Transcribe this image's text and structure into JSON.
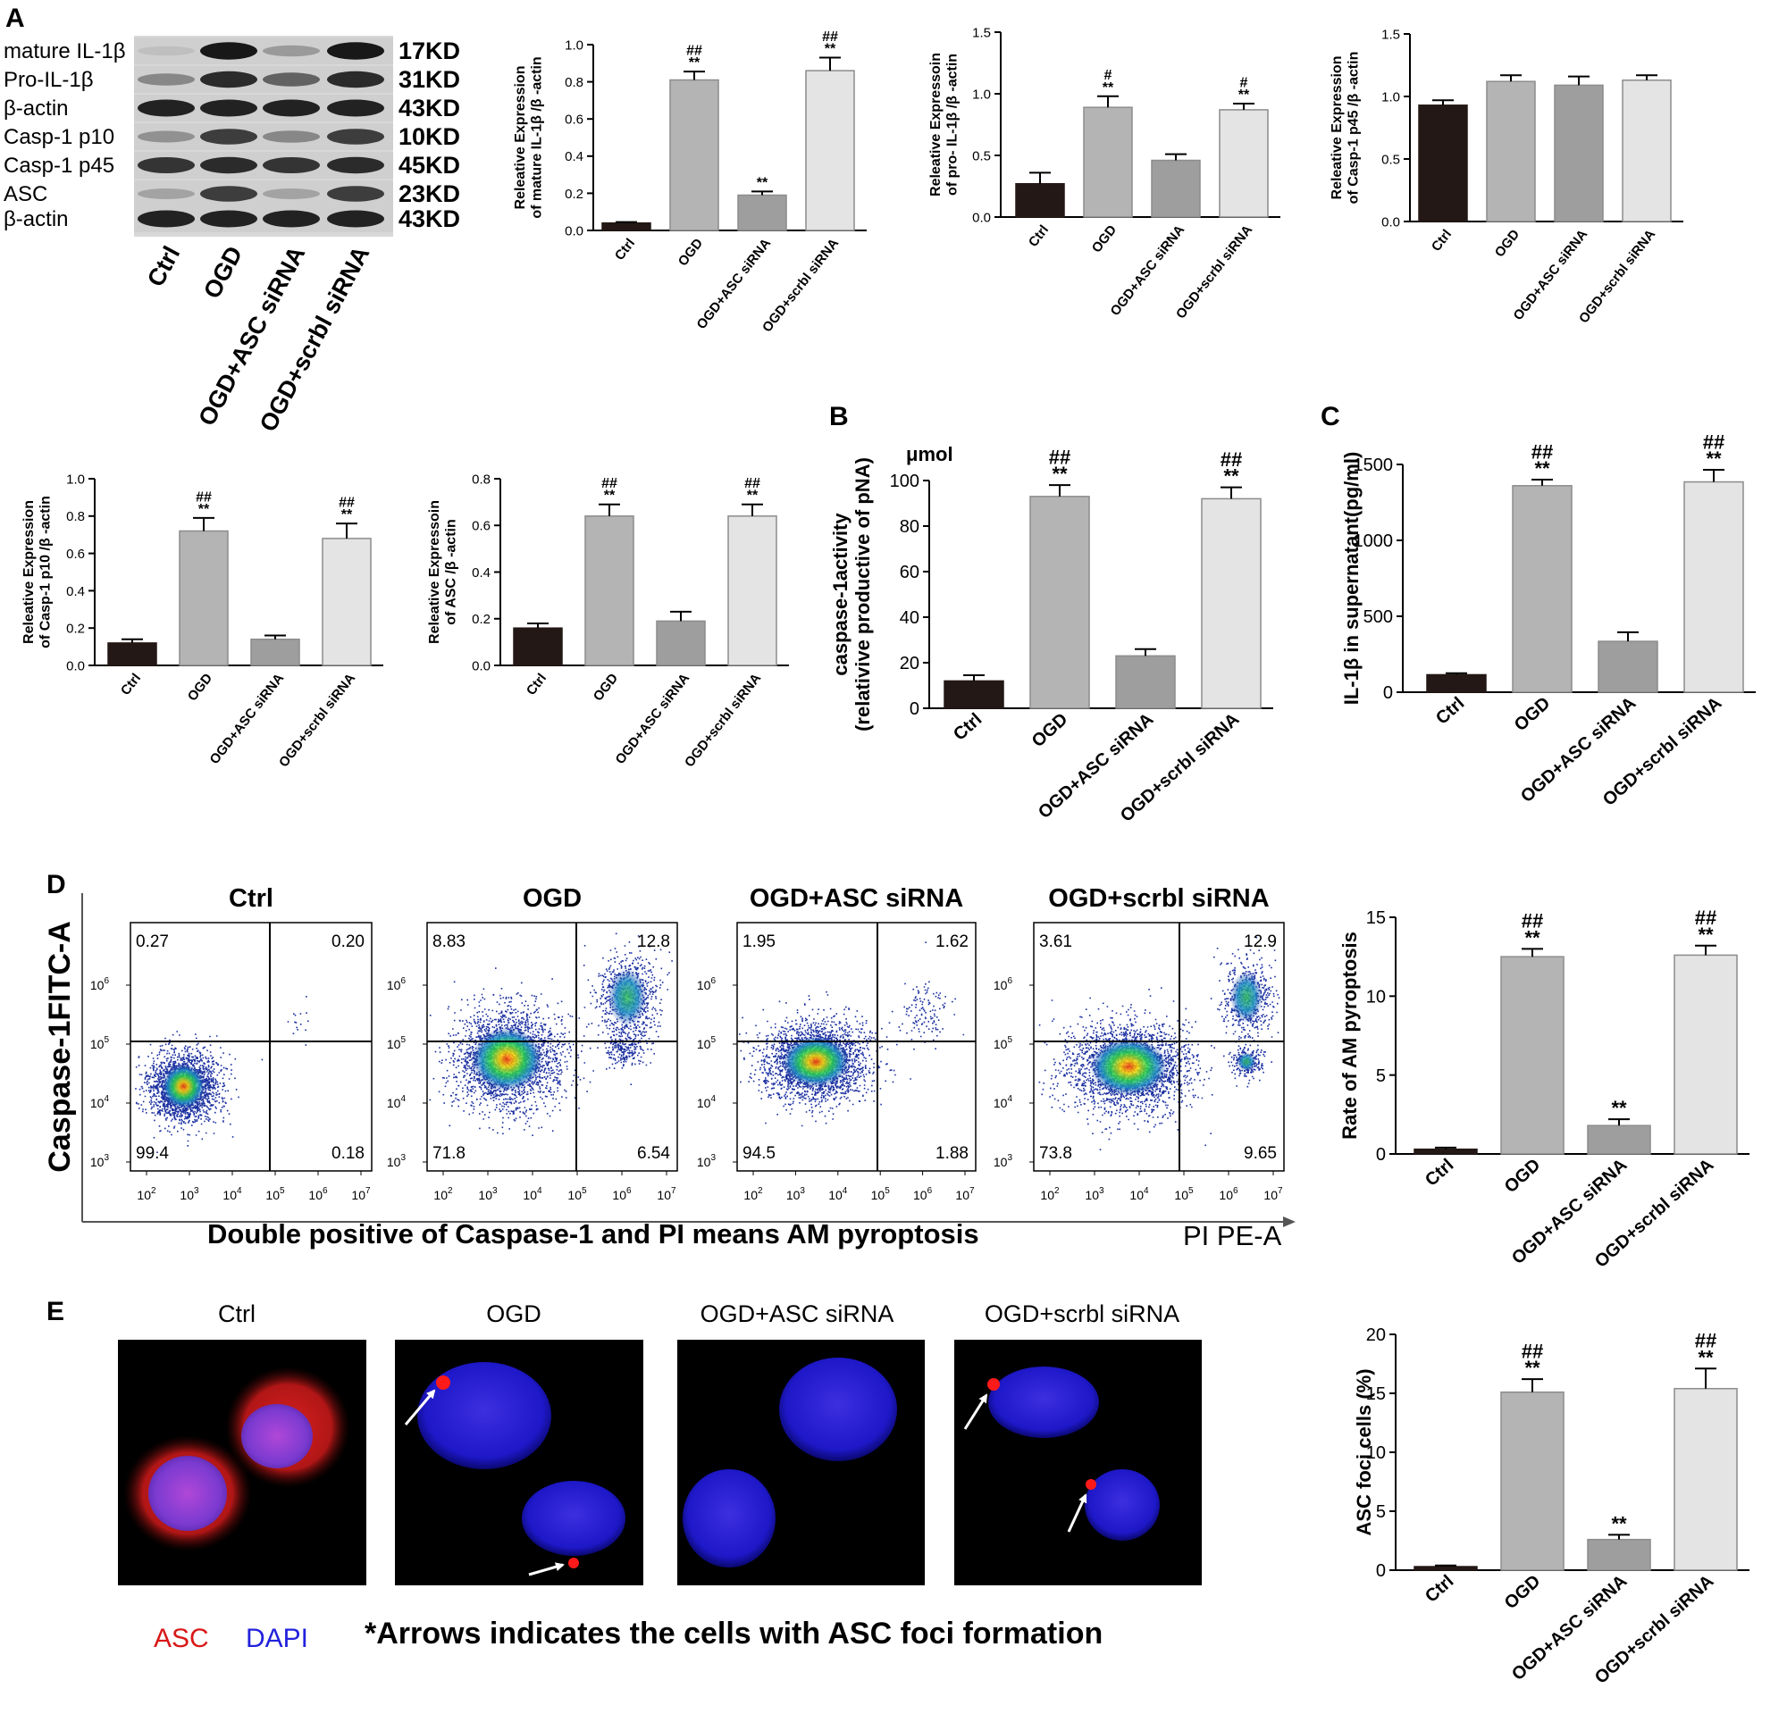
{
  "panel_letters": [
    "A",
    "B",
    "C",
    "D",
    "E"
  ],
  "groups": [
    "Ctrl",
    "OGD",
    "OGD+ASC siRNA",
    "OGD+scrbl siRNA"
  ],
  "bar_colors": [
    "#231815",
    "#b4b4b4",
    "#9e9e9e",
    "#e4e4e4"
  ],
  "blot": {
    "labels": [
      "mature IL-1β",
      "Pro-IL-1β",
      "β-actin",
      "Casp-1 p10",
      "Casp-1 p45",
      "ASC",
      "β-actin"
    ],
    "sizes": [
      "17KD",
      "31KD",
      "43KD",
      "10KD",
      "45KD",
      "23KD",
      "43KD"
    ],
    "band_intensity": [
      [
        0.05,
        0.95,
        0.25,
        0.95
      ],
      [
        0.35,
        0.85,
        0.55,
        0.85
      ],
      [
        0.9,
        0.9,
        0.9,
        0.9
      ],
      [
        0.3,
        0.75,
        0.35,
        0.75
      ],
      [
        0.8,
        0.85,
        0.8,
        0.85
      ],
      [
        0.2,
        0.75,
        0.2,
        0.75
      ],
      [
        0.9,
        0.9,
        0.9,
        0.9
      ]
    ]
  },
  "chart_data": [
    {
      "id": "A1",
      "type": "bar",
      "categories": [
        "Ctrl",
        "OGD",
        "OGD+ASC siRNA",
        "OGD+scrbl siRNA"
      ],
      "values": [
        0.04,
        0.81,
        0.19,
        0.86
      ],
      "errors": [
        0.005,
        0.045,
        0.02,
        0.07
      ],
      "annotations": [
        [
          "",
          ""
        ],
        [
          "##",
          "**"
        ],
        [
          "",
          "**"
        ],
        [
          "##",
          "**"
        ]
      ],
      "ylabel": [
        "Releative Expression",
        "of mature IL-1β /β -actin"
      ],
      "ylim": [
        0,
        1.0
      ],
      "yticks": [
        "0.0",
        "0.2",
        "0.4",
        "0.6",
        "0.8",
        "1.0"
      ]
    },
    {
      "id": "A2",
      "type": "bar",
      "categories": [
        "Ctrl",
        "OGD",
        "OGD+ASC siRNA",
        "OGD+scrbl siRNA"
      ],
      "values": [
        0.27,
        0.89,
        0.46,
        0.87
      ],
      "errors": [
        0.09,
        0.09,
        0.05,
        0.05
      ],
      "annotations": [
        [
          "",
          ""
        ],
        [
          "#",
          "**"
        ],
        [
          "",
          ""
        ],
        [
          "#",
          "**"
        ]
      ],
      "ylabel": [
        "Releative Expressoin",
        "of pro- IL-1β /β -actin"
      ],
      "ylim": [
        0,
        1.5
      ],
      "yticks": [
        "0.0",
        "0.5",
        "1.0",
        "1.5"
      ]
    },
    {
      "id": "A3",
      "type": "bar",
      "categories": [
        "Ctrl",
        "OGD",
        "OGD+ASC siRNA",
        "OGD+scrbl siRNA"
      ],
      "values": [
        0.93,
        1.12,
        1.09,
        1.13
      ],
      "errors": [
        0.04,
        0.05,
        0.07,
        0.04
      ],
      "annotations": [
        [
          "",
          ""
        ],
        [
          "",
          ""
        ],
        [
          "",
          ""
        ],
        [
          "",
          ""
        ]
      ],
      "ylabel": [
        "Releative Expression",
        "of Casp-1 p45 /β -actin"
      ],
      "ylim": [
        0,
        1.5
      ],
      "yticks": [
        "0.0",
        "0.5",
        "1.0",
        "1.5"
      ]
    },
    {
      "id": "A4",
      "type": "bar",
      "categories": [
        "Ctrl",
        "OGD",
        "OGD+ASC siRNA",
        "OGD+scrbl siRNA"
      ],
      "values": [
        0.12,
        0.72,
        0.14,
        0.68
      ],
      "errors": [
        0.02,
        0.07,
        0.02,
        0.08
      ],
      "annotations": [
        [
          "",
          ""
        ],
        [
          "##",
          "**"
        ],
        [
          "",
          ""
        ],
        [
          "##",
          "**"
        ]
      ],
      "ylabel": [
        "Releative Expression",
        "of Casp-1 p10 /β -actin"
      ],
      "ylim": [
        0,
        1.0
      ],
      "yticks": [
        "0.0",
        "0.2",
        "0.4",
        "0.6",
        "0.8",
        "1.0"
      ]
    },
    {
      "id": "A5",
      "type": "bar",
      "categories": [
        "Ctrl",
        "OGD",
        "OGD+ASC siRNA",
        "OGD+scrbl siRNA"
      ],
      "values": [
        0.16,
        0.64,
        0.19,
        0.64
      ],
      "errors": [
        0.02,
        0.05,
        0.04,
        0.05
      ],
      "annotations": [
        [
          "",
          ""
        ],
        [
          "##",
          "**"
        ],
        [
          "",
          ""
        ],
        [
          "##",
          "**"
        ]
      ],
      "ylabel": [
        "Releative Expressoin",
        "of ASC /β -actin"
      ],
      "ylim": [
        0,
        0.8
      ],
      "yticks": [
        "0.0",
        "0.2",
        "0.4",
        "0.6",
        "0.8"
      ]
    },
    {
      "id": "B",
      "type": "bar",
      "categories": [
        "Ctrl",
        "OGD",
        "OGD+ASC siRNA",
        "OGD+scrbl siRNA"
      ],
      "values": [
        12,
        93,
        23,
        92
      ],
      "errors": [
        2.5,
        5,
        3,
        5
      ],
      "annotations": [
        [
          "",
          ""
        ],
        [
          "##",
          "**"
        ],
        [
          "",
          ""
        ],
        [
          "##",
          "**"
        ]
      ],
      "ylabel": [
        "caspase-1activity",
        "(relativive productive of pNA)"
      ],
      "unit": "μmol",
      "ylim": [
        0,
        100
      ],
      "yticks": [
        "0",
        "20",
        "40",
        "60",
        "80",
        "100"
      ]
    },
    {
      "id": "C",
      "type": "bar",
      "categories": [
        "Ctrl",
        "OGD",
        "OGD+ASC siRNA",
        "OGD+scrbl siRNA"
      ],
      "values": [
        115,
        1360,
        335,
        1385
      ],
      "errors": [
        10,
        40,
        60,
        80
      ],
      "annotations": [
        [
          "",
          ""
        ],
        [
          "##",
          "**"
        ],
        [
          "",
          ""
        ],
        [
          "##",
          "**"
        ]
      ],
      "ylabel": [
        "IL-1β in supernatant(pg/ml)"
      ],
      "ylim": [
        0,
        1500
      ],
      "yticks": [
        "0",
        "500",
        "1000",
        "1500"
      ]
    },
    {
      "id": "D-rate",
      "type": "bar",
      "categories": [
        "Ctrl",
        "OGD",
        "OGD+ASC siRNA",
        "OGD+scrbl siRNA"
      ],
      "values": [
        0.3,
        12.5,
        1.8,
        12.6
      ],
      "errors": [
        0.1,
        0.5,
        0.4,
        0.6
      ],
      "annotations": [
        [
          "",
          ""
        ],
        [
          "##",
          "**"
        ],
        [
          "",
          "**"
        ],
        [
          "##",
          "**"
        ]
      ],
      "ylabel": [
        "Rate of AM pyroptosis"
      ],
      "ylim": [
        0,
        15
      ],
      "yticks": [
        "0",
        "5",
        "10",
        "15"
      ]
    },
    {
      "id": "E-foci",
      "type": "bar",
      "categories": [
        "Ctrl",
        "OGD",
        "OGD+ASC siRNA",
        "OGD+scrbl siRNA"
      ],
      "values": [
        0.3,
        15.1,
        2.6,
        15.4
      ],
      "errors": [
        0.1,
        1.1,
        0.4,
        1.7
      ],
      "annotations": [
        [
          "",
          ""
        ],
        [
          "##",
          "**"
        ],
        [
          "",
          "**"
        ],
        [
          "##",
          "**"
        ]
      ],
      "ylabel": [
        "ASC foci cells (%)"
      ],
      "ylim": [
        0,
        20
      ],
      "yticks": [
        "0",
        "5",
        "10",
        "15",
        "20"
      ]
    },
    {
      "id": "D-flow",
      "type": "scatter",
      "titles": [
        "Ctrl",
        "OGD",
        "OGD+ASC siRNA",
        "OGD+scrbl siRNA"
      ],
      "quadrants": [
        [
          "0.27",
          "0.20",
          "99.4",
          "0.18"
        ],
        [
          "8.83",
          "12.8",
          "71.8",
          "6.54"
        ],
        [
          "1.95",
          "1.62",
          "94.5",
          "1.88"
        ],
        [
          "3.61",
          "12.9",
          "73.8",
          "9.65"
        ]
      ],
      "ylabel": "Caspase-1FITC-A",
      "xlabel": "PI PE-A",
      "xlabel_note": "Double positive of Caspase-1 and PI means AM pyroptosis",
      "x_ticks": [
        "10^2",
        "10^3",
        "10^4",
        "10^5",
        "10^6",
        "10^7"
      ],
      "y_ticks": [
        "10^3",
        "10^4",
        "10^5",
        "10^6"
      ]
    }
  ],
  "panel_e": {
    "titles": [
      "Ctrl",
      "OGD",
      "OGD+ASC siRNA",
      "OGD+scrbl siRNA"
    ],
    "legend_asc": "ASC",
    "legend_dapi": "DAPI",
    "note": "*Arrows indicates the cells with ASC foci formation"
  }
}
